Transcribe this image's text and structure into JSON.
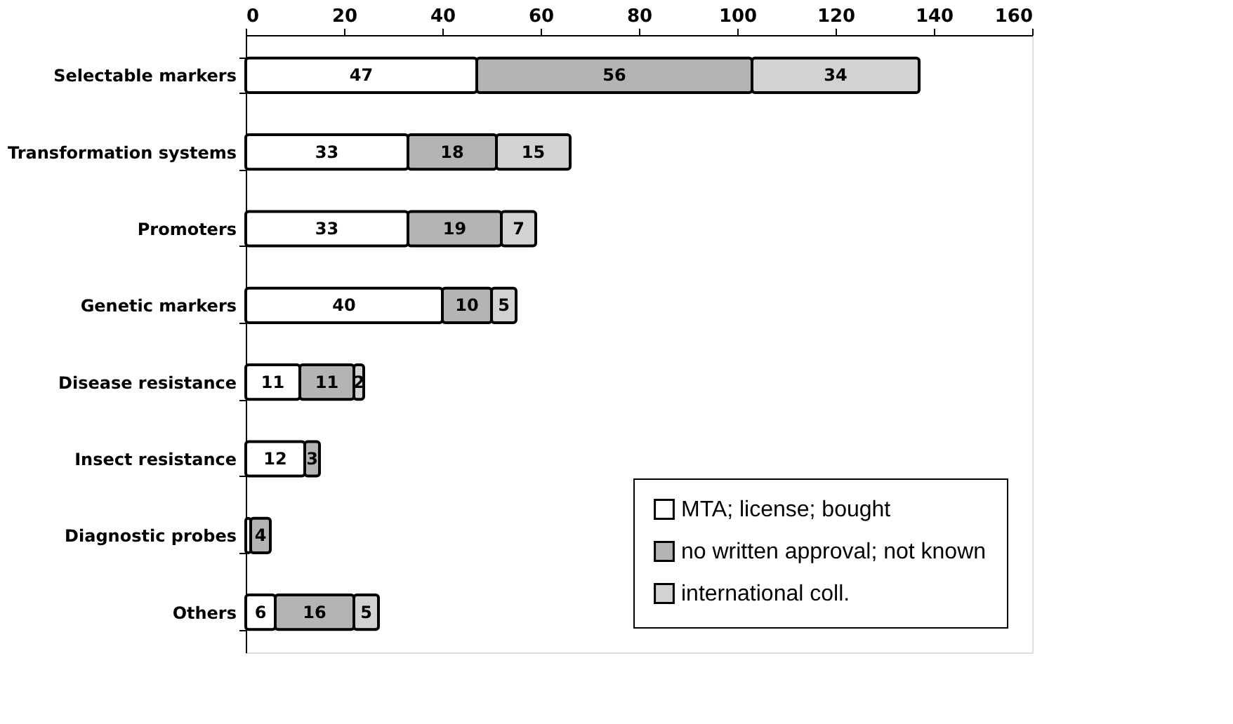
{
  "chart_data": {
    "type": "bar",
    "orientation": "horizontal",
    "stacked": true,
    "categories": [
      "Selectable markers",
      "Transformation systems",
      "Promoters",
      "Genetic markers",
      "Disease resistance",
      "Insect resistance",
      "Diagnostic probes",
      "Others"
    ],
    "series": [
      {
        "name": "MTA; license; bought",
        "color": "#ffffff",
        "values": [
          47,
          33,
          33,
          40,
          11,
          12,
          1,
          6
        ],
        "value_labels": [
          "47",
          "33",
          "33",
          "40",
          "11",
          "12",
          null,
          "6"
        ]
      },
      {
        "name": "no written approval; not known",
        "color": "#b4b4b4",
        "values": [
          56,
          18,
          19,
          10,
          11,
          3,
          4,
          16
        ],
        "value_labels": [
          "56",
          "18",
          "19",
          "10",
          "11",
          "3",
          "4",
          "16"
        ]
      },
      {
        "name": "international coll.",
        "color": "#d2d2d2",
        "values": [
          34,
          15,
          7,
          5,
          2,
          null,
          null,
          5
        ],
        "value_labels": [
          "34",
          "15",
          "7",
          "5",
          "2",
          null,
          null,
          "5"
        ]
      }
    ],
    "xlim": [
      0,
      160
    ],
    "xticks": [
      0,
      20,
      40,
      60,
      80,
      100,
      120,
      140,
      160
    ],
    "grid": false,
    "legend": "bottom right"
  }
}
